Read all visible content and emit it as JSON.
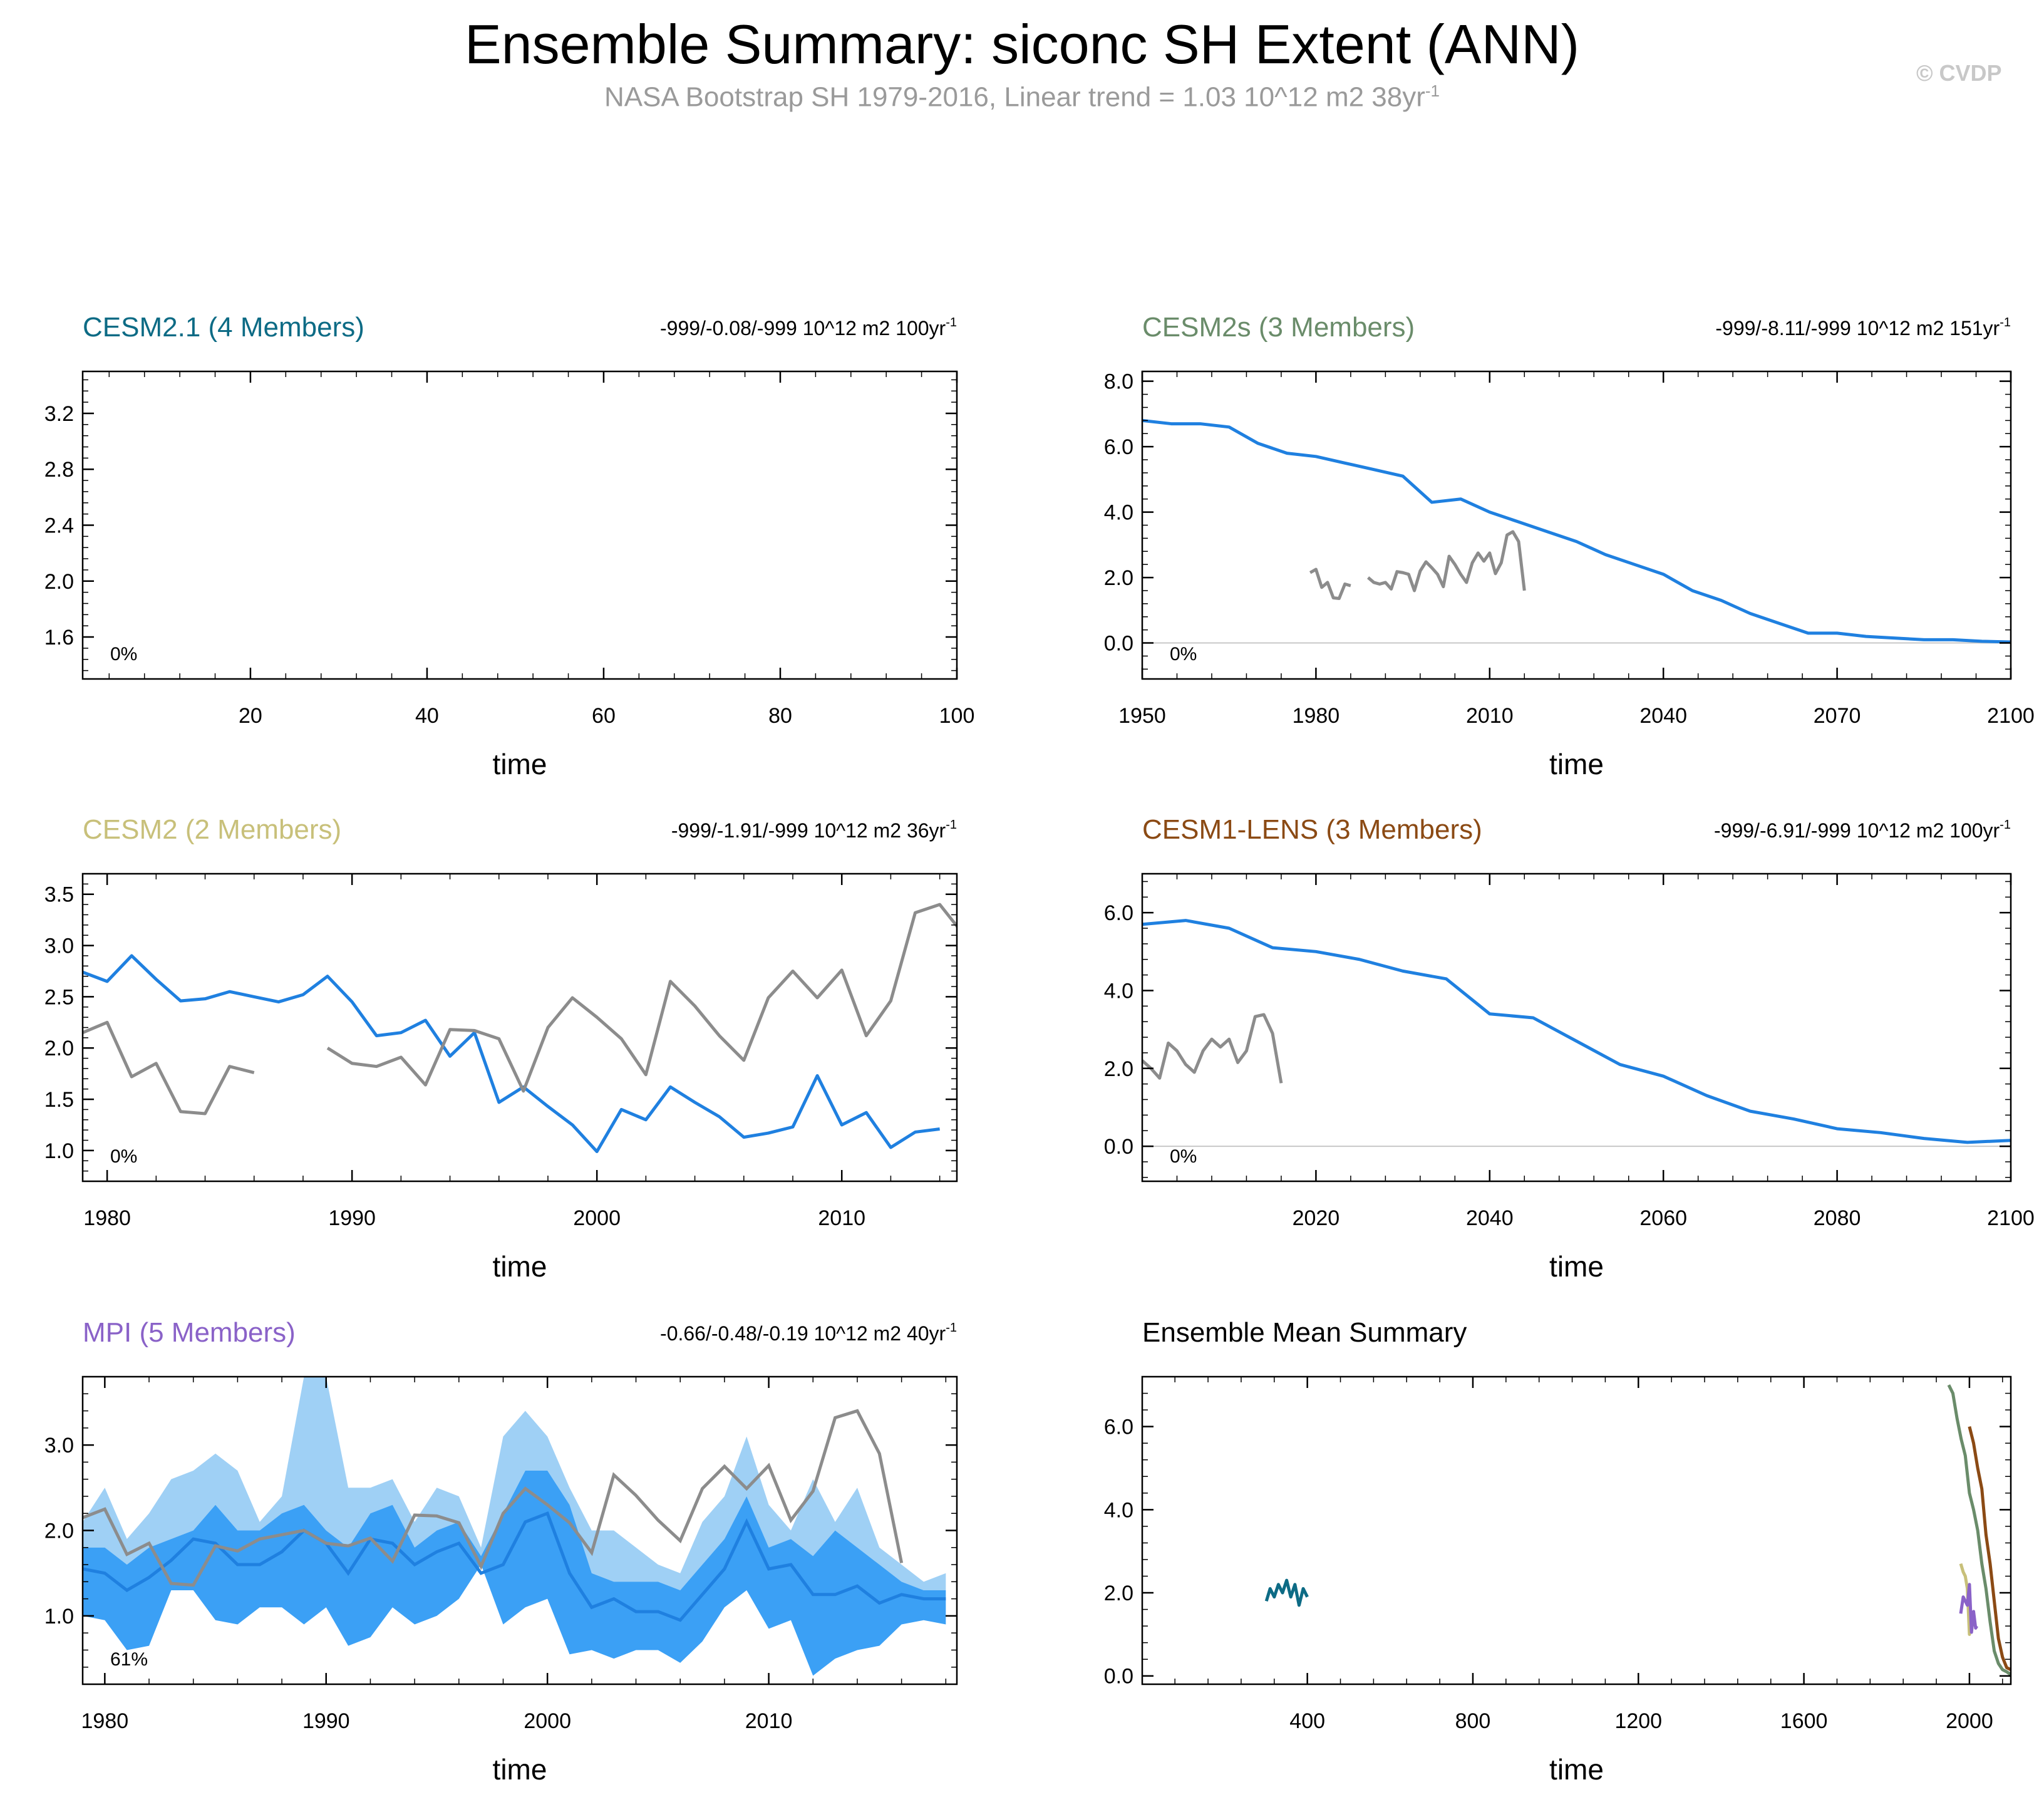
{
  "title": "Ensemble Summary: siconc SH Extent (ANN)",
  "subtitle_main": "NASA Bootstrap SH 1979-2016, Linear trend = 1.03 10^12 m2 38yr",
  "subtitle_sup": "-1",
  "copyright": "© CVDP",
  "chart_data": [
    {
      "type": "line",
      "title": "CESM2.1 (4 Members)",
      "title_color": "#0d6b85",
      "trend": "-999/-0.08/-999 10^12 m2 100yr",
      "trend_sup": "-1",
      "xlabel": "time",
      "percent": "0%",
      "xlim": [
        1,
        100
      ],
      "ylim": [
        1.3,
        3.5
      ],
      "xticks": [
        20,
        40,
        60,
        80,
        100
      ],
      "yticks": [
        1.6,
        2.0,
        2.4,
        2.8,
        3.2
      ],
      "ytick_labels": [
        "1.6",
        "2.0",
        "2.4",
        "2.8",
        "3.2"
      ],
      "series": []
    },
    {
      "type": "line",
      "title": "CESM2s (3 Members)",
      "title_color": "#6a8c6a",
      "trend": "-999/-8.11/-999 10^12 m2 151yr",
      "trend_sup": "-1",
      "xlabel": "time",
      "percent": "0%",
      "xlim": [
        1950,
        2100
      ],
      "ylim": [
        -1.1,
        8.3
      ],
      "xticks": [
        1950,
        1980,
        2010,
        2040,
        2070,
        2100
      ],
      "yticks": [
        0,
        2,
        4,
        6,
        8
      ],
      "ytick_labels": [
        "0.0",
        "2.0",
        "4.0",
        "6.0",
        "8.0"
      ],
      "zero_line": true,
      "series": [
        {
          "color": "#1f80e0",
          "x": [
            1950,
            1955,
            1960,
            1965,
            1970,
            1975,
            1980,
            1985,
            1990,
            1995,
            2000,
            2005,
            2010,
            2015,
            2020,
            2025,
            2030,
            2035,
            2040,
            2045,
            2050,
            2055,
            2060,
            2065,
            2070,
            2075,
            2080,
            2085,
            2090,
            2095,
            2100
          ],
          "y": [
            6.8,
            6.7,
            6.7,
            6.6,
            6.1,
            5.8,
            5.7,
            5.5,
            5.3,
            5.1,
            4.3,
            4.4,
            4.0,
            3.7,
            3.4,
            3.1,
            2.7,
            2.4,
            2.1,
            1.6,
            1.3,
            0.9,
            0.6,
            0.3,
            0.3,
            0.2,
            0.15,
            0.1,
            0.1,
            0.05,
            0.03
          ]
        },
        {
          "color": "#8c8c8c",
          "x": [
            1979,
            1980,
            1981,
            1982,
            1983,
            1984,
            1985,
            1986
          ],
          "y": [
            2.15,
            2.25,
            1.7,
            1.85,
            1.38,
            1.36,
            1.8,
            1.75
          ]
        },
        {
          "color": "#8c8c8c",
          "x": [
            1989,
            1990,
            1991,
            1992,
            1993,
            1994,
            1995,
            1996,
            1997,
            1998,
            1999,
            2000,
            2001,
            2002,
            2003,
            2004,
            2005,
            2006,
            2007,
            2008,
            2009,
            2010,
            2011,
            2012,
            2013,
            2014,
            2015,
            2016
          ],
          "y": [
            2.0,
            1.85,
            1.8,
            1.85,
            1.65,
            2.18,
            2.15,
            2.1,
            1.6,
            2.2,
            2.48,
            2.3,
            2.1,
            1.72,
            2.65,
            2.4,
            2.1,
            1.85,
            2.45,
            2.75,
            2.5,
            2.75,
            2.12,
            2.45,
            3.3,
            3.4,
            3.1,
            1.6
          ]
        }
      ]
    },
    {
      "type": "line",
      "title": "CESM2 (2 Members)",
      "title_color": "#c8c07a",
      "trend": "-999/-1.91/-999 10^12 m2 36yr",
      "trend_sup": "-1",
      "xlabel": "time",
      "percent": "0%",
      "xlim": [
        1979,
        2014.7
      ],
      "ylim": [
        0.7,
        3.7
      ],
      "xticks": [
        1980,
        1990,
        2000,
        2010
      ],
      "yticks": [
        1.0,
        1.5,
        2.0,
        2.5,
        3.0,
        3.5
      ],
      "ytick_labels": [
        "1.0",
        "1.5",
        "2.0",
        "2.5",
        "3.0",
        "3.5"
      ],
      "series": [
        {
          "color": "#1f80e0",
          "x": [
            1979,
            1980,
            1981,
            1982,
            1983,
            1984,
            1985,
            1986,
            1987,
            1988,
            1989,
            1990,
            1991,
            1992,
            1993,
            1994,
            1995,
            1996,
            1997,
            1998,
            1999,
            2000,
            2001,
            2002,
            2003,
            2004,
            2005,
            2006,
            2007,
            2008,
            2009,
            2010,
            2011,
            2012,
            2013,
            2014
          ],
          "y": [
            2.74,
            2.65,
            2.9,
            2.67,
            2.46,
            2.48,
            2.55,
            2.5,
            2.45,
            2.52,
            2.7,
            2.45,
            2.12,
            2.15,
            2.27,
            1.92,
            2.15,
            1.47,
            1.62,
            1.43,
            1.25,
            0.99,
            1.4,
            1.3,
            1.62,
            1.47,
            1.33,
            1.13,
            1.17,
            1.23,
            1.73,
            1.25,
            1.37,
            1.03,
            1.18,
            1.21
          ]
        },
        {
          "color": "#8c8c8c",
          "x": [
            1979,
            1980,
            1981,
            1982,
            1983,
            1984,
            1985,
            1986
          ],
          "y": [
            2.15,
            2.25,
            1.72,
            1.85,
            1.38,
            1.36,
            1.82,
            1.76
          ]
        },
        {
          "color": "#8c8c8c",
          "x": [
            1989,
            1990,
            1991,
            1992,
            1993,
            1994,
            1995,
            1996,
            1997,
            1998,
            1999,
            2000,
            2001,
            2002,
            2003,
            2004,
            2005,
            2006,
            2007,
            2008,
            2009,
            2010,
            2011,
            2012,
            2013,
            2014,
            2015
          ],
          "y": [
            2.0,
            1.85,
            1.82,
            1.91,
            1.64,
            2.18,
            2.17,
            2.09,
            1.58,
            2.2,
            2.49,
            2.3,
            2.09,
            1.74,
            2.65,
            2.41,
            2.12,
            1.88,
            2.49,
            2.75,
            2.49,
            2.76,
            2.12,
            2.46,
            3.32,
            3.4,
            3.1
          ]
        }
      ]
    },
    {
      "type": "line",
      "title": "CESM1-LENS (3 Members)",
      "title_color": "#8b4a14",
      "trend": "-999/-6.91/-999 10^12 m2 100yr",
      "trend_sup": "-1",
      "xlabel": "time",
      "percent": "0%",
      "xlim": [
        2000,
        2100
      ],
      "ylim": [
        -0.9,
        7.0
      ],
      "xticks": [
        2020,
        2040,
        2060,
        2080,
        2100
      ],
      "yticks": [
        0,
        2,
        4,
        6
      ],
      "ytick_labels": [
        "0.0",
        "2.0",
        "4.0",
        "6.0"
      ],
      "zero_line": true,
      "series": [
        {
          "color": "#1f80e0",
          "x": [
            2000,
            2005,
            2010,
            2015,
            2020,
            2025,
            2030,
            2035,
            2040,
            2045,
            2050,
            2055,
            2060,
            2065,
            2070,
            2075,
            2080,
            2085,
            2090,
            2095,
            2100
          ],
          "y": [
            5.7,
            5.8,
            5.6,
            5.1,
            5.0,
            4.8,
            4.5,
            4.3,
            3.4,
            3.3,
            2.7,
            2.1,
            1.8,
            1.3,
            0.9,
            0.7,
            0.45,
            0.35,
            0.2,
            0.1,
            0.15
          ]
        },
        {
          "color": "#8c8c8c",
          "x": [
            2000,
            2001,
            2002,
            2003,
            2004,
            2005,
            2006,
            2007,
            2008,
            2009,
            2010,
            2011,
            2012,
            2013,
            2014,
            2015,
            2016
          ],
          "y": [
            2.2,
            2.0,
            1.75,
            2.65,
            2.45,
            2.1,
            1.9,
            2.45,
            2.75,
            2.55,
            2.75,
            2.15,
            2.45,
            3.33,
            3.38,
            2.9,
            1.62
          ]
        }
      ]
    },
    {
      "type": "area",
      "title": "MPI (5 Members)",
      "title_color": "#8a62c8",
      "trend": "-0.66/-0.48/-0.19 10^12 m2 40yr",
      "trend_sup": "-1",
      "xlabel": "time",
      "percent": "61%",
      "xlim": [
        1979,
        2018.5
      ],
      "ylim": [
        0.2,
        3.8
      ],
      "xticks": [
        1980,
        1990,
        2000,
        2010
      ],
      "yticks": [
        1.0,
        2.0,
        3.0
      ],
      "ytick_labels": [
        "1.0",
        "2.0",
        "3.0"
      ],
      "x": [
        1979,
        1980,
        1981,
        1982,
        1983,
        1984,
        1985,
        1986,
        1987,
        1988,
        1989,
        1990,
        1991,
        1992,
        1993,
        1994,
        1995,
        1996,
        1997,
        1998,
        1999,
        2000,
        2001,
        2002,
        2003,
        2004,
        2005,
        2006,
        2007,
        2008,
        2009,
        2010,
        2011,
        2012,
        2013,
        2014,
        2015,
        2016,
        2017,
        2018
      ],
      "outer_hi": [
        2.1,
        2.5,
        1.9,
        2.2,
        2.6,
        2.7,
        2.9,
        2.7,
        2.1,
        2.4,
        3.8,
        3.8,
        2.5,
        2.5,
        2.6,
        2.1,
        2.5,
        2.4,
        1.8,
        3.1,
        3.4,
        3.1,
        2.5,
        2.0,
        2.0,
        1.8,
        1.6,
        1.5,
        2.1,
        2.4,
        3.1,
        2.3,
        2.0,
        2.6,
        2.1,
        2.5,
        1.8,
        1.6,
        1.4,
        1.5
      ],
      "inner_hi": [
        1.8,
        1.8,
        1.6,
        1.8,
        1.9,
        2.0,
        2.3,
        2.0,
        2.0,
        2.2,
        2.3,
        2.0,
        1.8,
        2.2,
        2.3,
        1.8,
        2.0,
        2.1,
        1.7,
        2.2,
        2.7,
        2.7,
        2.3,
        1.5,
        1.4,
        1.4,
        1.4,
        1.3,
        1.6,
        1.9,
        2.4,
        1.8,
        1.9,
        1.7,
        2.0,
        1.8,
        1.6,
        1.4,
        1.3,
        1.3
      ],
      "inner_lo": [
        1.0,
        0.95,
        0.6,
        0.65,
        1.3,
        1.3,
        0.95,
        0.9,
        1.1,
        1.1,
        0.9,
        1.1,
        0.65,
        0.75,
        1.1,
        0.9,
        1.0,
        1.2,
        1.6,
        0.9,
        1.1,
        1.2,
        0.55,
        0.6,
        0.5,
        0.6,
        0.6,
        0.45,
        0.7,
        1.1,
        1.3,
        0.85,
        0.95,
        0.3,
        0.5,
        0.6,
        0.65,
        0.9,
        0.95,
        0.9
      ],
      "mean": [
        1.55,
        1.5,
        1.3,
        1.45,
        1.65,
        1.9,
        1.85,
        1.6,
        1.6,
        1.75,
        2.0,
        1.85,
        1.5,
        1.9,
        1.85,
        1.6,
        1.75,
        1.85,
        1.5,
        1.6,
        2.1,
        2.2,
        1.5,
        1.1,
        1.2,
        1.05,
        1.05,
        0.95,
        1.25,
        1.55,
        2.1,
        1.55,
        1.6,
        1.25,
        1.25,
        1.35,
        1.15,
        1.25,
        1.2,
        1.2
      ],
      "obs_x": [
        1979,
        1980,
        1981,
        1982,
        1983,
        1984,
        1985,
        1986,
        1987,
        1988,
        1989,
        1990,
        1991,
        1992,
        1993,
        1994,
        1995,
        1996,
        1997,
        1998,
        1999,
        2000,
        2001,
        2002,
        2003,
        2004,
        2005,
        2006,
        2007,
        2008,
        2009,
        2010,
        2011,
        2012,
        2013,
        2014,
        2015,
        2016
      ],
      "obs_y": [
        2.15,
        2.25,
        1.72,
        1.85,
        1.38,
        1.36,
        1.82,
        1.76,
        1.9,
        1.95,
        2.0,
        1.85,
        1.82,
        1.91,
        1.64,
        2.18,
        2.17,
        2.09,
        1.58,
        2.2,
        2.49,
        2.3,
        2.09,
        1.74,
        2.65,
        2.41,
        2.12,
        1.88,
        2.49,
        2.75,
        2.49,
        2.76,
        2.12,
        2.46,
        3.32,
        3.4,
        2.9,
        1.62
      ],
      "colors": {
        "outer": "#9fd0f5",
        "inner": "#3ba0f5",
        "mean": "#1f80e0",
        "obs": "#8c8c8c"
      }
    },
    {
      "type": "line",
      "title": "Ensemble Mean Summary",
      "title_color": "#000000",
      "xlabel": "time",
      "xlim": [
        1,
        2100
      ],
      "ylim": [
        -0.2,
        7.2
      ],
      "xticks": [
        400,
        800,
        1200,
        1600,
        2000
      ],
      "yticks": [
        0,
        2,
        4,
        6
      ],
      "ytick_labels": [
        "0.0",
        "2.0",
        "4.0",
        "6.0"
      ],
      "series": [
        {
          "name": "CESM2.1",
          "color": "#0d6b85",
          "x": [
            301,
            310,
            320,
            330,
            340,
            350,
            360,
            370,
            380,
            390,
            400
          ],
          "y": [
            1.8,
            2.1,
            1.9,
            2.2,
            2.0,
            2.3,
            1.9,
            2.2,
            1.7,
            2.1,
            1.9
          ]
        },
        {
          "name": "CESM2s",
          "color": "#6a8c6a",
          "x": [
            1950,
            1960,
            1970,
            1980,
            1990,
            2000,
            2010,
            2020,
            2030,
            2040,
            2050,
            2060,
            2070,
            2080,
            2090,
            2100
          ],
          "y": [
            7.0,
            6.8,
            6.2,
            5.7,
            5.3,
            4.4,
            4.0,
            3.5,
            2.7,
            2.1,
            1.3,
            0.6,
            0.3,
            0.15,
            0.1,
            0.03
          ]
        },
        {
          "name": "CESM2",
          "color": "#c8c07a",
          "x": [
            1979,
            1985,
            1990,
            1995,
            2000,
            2005,
            2010,
            2014
          ],
          "y": [
            2.7,
            2.5,
            2.4,
            2.1,
            1.0,
            1.5,
            1.3,
            1.2
          ]
        },
        {
          "name": "CESM1-LENS",
          "color": "#8b4a14",
          "x": [
            2000,
            2010,
            2020,
            2030,
            2040,
            2050,
            2060,
            2070,
            2080,
            2090,
            2100
          ],
          "y": [
            6.0,
            5.6,
            5.0,
            4.5,
            3.4,
            2.7,
            1.8,
            0.9,
            0.45,
            0.2,
            0.15
          ]
        },
        {
          "name": "MPI",
          "color": "#8a62c8",
          "x": [
            1979,
            1985,
            1990,
            1995,
            2000,
            2005,
            2010,
            2015,
            2018
          ],
          "y": [
            1.5,
            1.9,
            1.8,
            1.7,
            2.2,
            1.05,
            1.55,
            1.15,
            1.2
          ]
        }
      ]
    }
  ]
}
